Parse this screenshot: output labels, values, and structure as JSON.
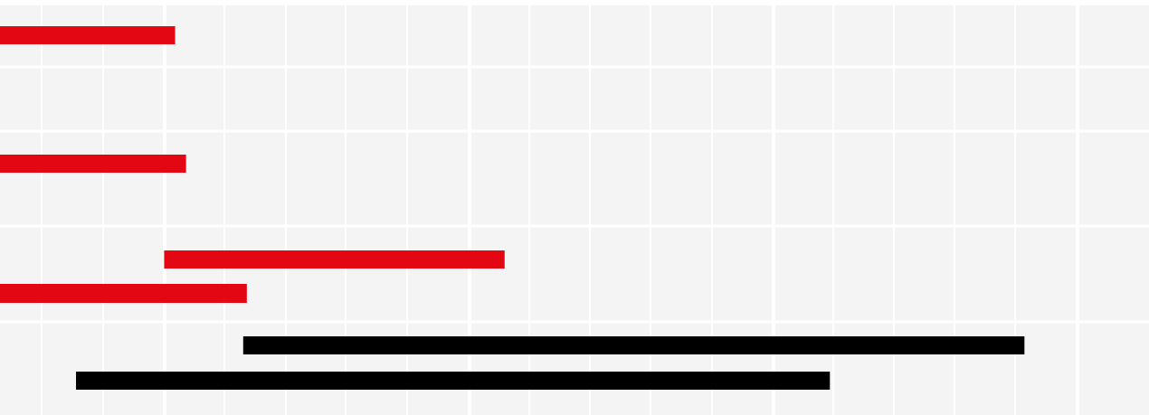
{
  "chart_data": {
    "type": "bar",
    "orientation": "horizontal",
    "chart_style": "gantt",
    "grid": true,
    "legend": "none",
    "colors": {
      "background": "#f4f4f4",
      "grid": "#ffffff",
      "accent_red": "#e30613",
      "accent_black": "#000000"
    },
    "bars": [
      {
        "start": 0,
        "end": 2.88,
        "color": "#e30613"
      },
      {
        "start": 0,
        "end": 3.06,
        "color": "#e30613"
      },
      {
        "start": 2.7,
        "end": 8.3,
        "color": "#e30613"
      },
      {
        "start": 0,
        "end": 4.06,
        "color": "#e30613"
      },
      {
        "start": 4.0,
        "end": 16.85,
        "color": "#000000"
      },
      {
        "start": 1.25,
        "end": 13.65,
        "color": "#000000"
      }
    ]
  }
}
